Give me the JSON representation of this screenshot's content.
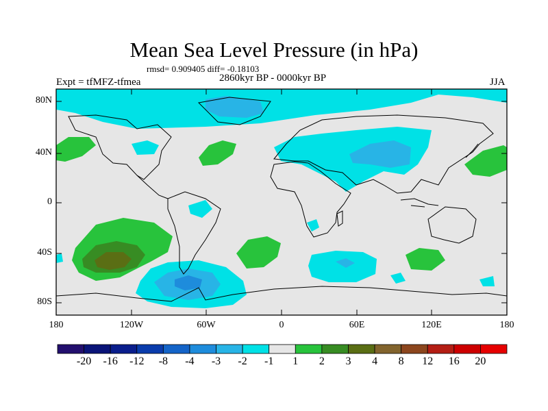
{
  "title": "Mean Sea Level Pressure (in hPa)",
  "stats": "rmsd= 0.909405 diff= -0.18103",
  "period": "2860kyr BP - 0000kyr BP",
  "experiment": "Expt = tfMFZ-tfmea",
  "season": "JJA",
  "map": {
    "lat_ticks": [
      "80N",
      "40N",
      "0",
      "40S",
      "80S"
    ],
    "lon_ticks": [
      "180",
      "120W",
      "60W",
      "0",
      "60E",
      "120E",
      "180"
    ],
    "background_color": "#e6e6e6"
  },
  "colorbar": {
    "labels": [
      "-20",
      "-16",
      "-12",
      "-8",
      "-4",
      "-3",
      "-2",
      "-1",
      "1",
      "2",
      "3",
      "4",
      "8",
      "12",
      "16",
      "20"
    ],
    "colors": [
      "#230f6e",
      "#0a1478",
      "#0a1e8c",
      "#0a3cac",
      "#1464c8",
      "#1e8cdc",
      "#28b4e6",
      "#00e1e6",
      "#e6e6e6",
      "#28c33c",
      "#378c23",
      "#5a6e14",
      "#82642d",
      "#8c461e",
      "#b41e14",
      "#cd0000",
      "#e60000"
    ]
  }
}
